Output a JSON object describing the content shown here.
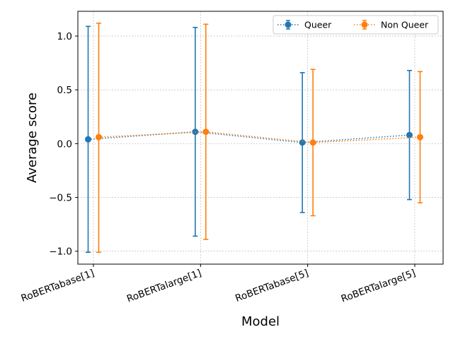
{
  "chart_data": {
    "type": "line",
    "xlabel": "Model",
    "ylabel": "Average score",
    "categories": [
      "RoBERTabase[1]",
      "RoBERTalarge[1]",
      "RoBERTabase[5]",
      "RoBERTalarge[5]"
    ],
    "ylim": [
      -1.12,
      1.23
    ],
    "yticks": [
      -1.0,
      -0.5,
      0.0,
      0.5,
      1.0
    ],
    "ytick_labels": [
      "−1.0",
      "−0.5",
      "0.0",
      "0.5",
      "1.0"
    ],
    "grid": true,
    "legend_position": "top-right",
    "series": [
      {
        "name": "Queer",
        "color": "#1f77b4",
        "values": [
          0.04,
          0.11,
          0.01,
          0.08
        ],
        "lower": [
          -1.01,
          -0.86,
          -0.64,
          -0.52
        ],
        "upper": [
          1.09,
          1.08,
          0.66,
          0.68
        ]
      },
      {
        "name": "Non Queer",
        "color": "#ff7f0e",
        "values": [
          0.06,
          0.11,
          0.01,
          0.06
        ],
        "lower": [
          -1.01,
          -0.89,
          -0.67,
          -0.55
        ],
        "upper": [
          1.12,
          1.11,
          0.69,
          0.67
        ]
      }
    ]
  }
}
